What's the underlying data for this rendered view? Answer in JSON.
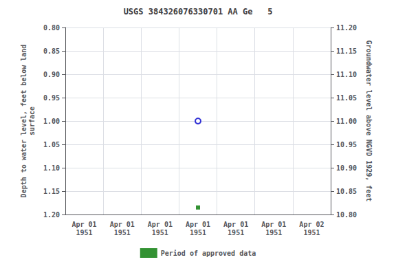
{
  "chart_data": {
    "type": "scatter",
    "title": "USGS 384326076330701 AA Ge   5",
    "ylabel": "Depth to water level, feet below land\nsurface",
    "y2label": "Groundwater level above NGVD 1929, feet",
    "categories": [
      "Apr 01\n1951",
      "Apr 01\n1951",
      "Apr 01\n1951",
      "Apr 01\n1951",
      "Apr 01\n1951",
      "Apr 01\n1951",
      "Apr 02\n1951"
    ],
    "series": [
      {
        "color": "#0000cc",
        "marker": "circle-open",
        "values": [
          null,
          null,
          null,
          1.0,
          null,
          null,
          null
        ]
      },
      {
        "name": "Period of approved data",
        "color": "#007700",
        "marker": "square",
        "values": [
          null,
          null,
          null,
          1.185,
          null,
          null,
          null
        ]
      }
    ],
    "ylim": [
      1.2,
      0.8
    ],
    "yticks": [
      {
        "value": 0.8,
        "label": "0.80"
      },
      {
        "value": 0.85,
        "label": "0.85"
      },
      {
        "value": 0.9,
        "label": "0.90"
      },
      {
        "value": 0.95,
        "label": "0.95"
      },
      {
        "value": 1.0,
        "label": "1.00"
      },
      {
        "value": 1.05,
        "label": "1.05"
      },
      {
        "value": 1.1,
        "label": "1.10"
      },
      {
        "value": 1.15,
        "label": "1.15"
      },
      {
        "value": 1.2,
        "label": "1.20"
      }
    ],
    "y2lim": [
      10.8,
      11.2
    ],
    "y2ticks": [
      {
        "value": 10.8,
        "label": "10.80"
      },
      {
        "value": 10.85,
        "label": "10.85"
      },
      {
        "value": 10.9,
        "label": "10.90"
      },
      {
        "value": 10.95,
        "label": "10.95"
      },
      {
        "value": 11.0,
        "label": "11.00"
      },
      {
        "value": 11.05,
        "label": "11.05"
      },
      {
        "value": 11.1,
        "label": "11.10"
      },
      {
        "value": 11.15,
        "label": "11.15"
      },
      {
        "value": 11.2,
        "label": "11.20"
      }
    ],
    "grid": true,
    "legend": "bottom"
  }
}
